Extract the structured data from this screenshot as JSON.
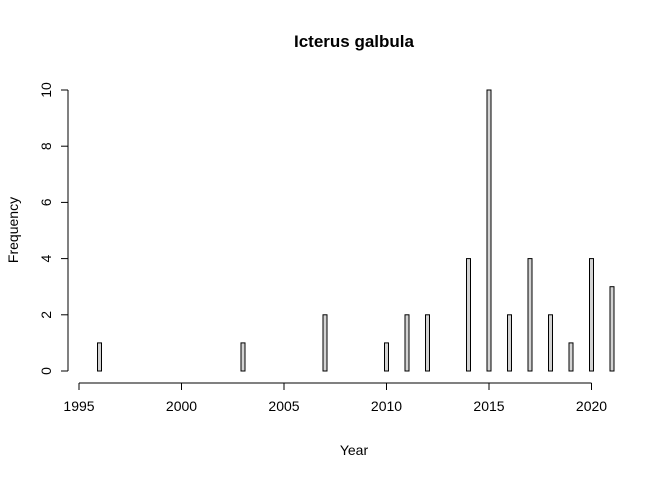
{
  "chart_data": {
    "type": "bar",
    "title": "Icterus galbula",
    "xlabel": "Year",
    "ylabel": "Frequency",
    "xlim": [
      1995,
      2021
    ],
    "ylim": [
      0,
      10
    ],
    "x_ticks": [
      1995,
      2000,
      2005,
      2010,
      2015,
      2020
    ],
    "y_ticks": [
      0,
      2,
      4,
      6,
      8,
      10
    ],
    "years": [
      1996,
      1997,
      1998,
      1999,
      2000,
      2001,
      2002,
      2003,
      2004,
      2005,
      2006,
      2007,
      2008,
      2009,
      2010,
      2011,
      2012,
      2013,
      2014,
      2015,
      2016,
      2017,
      2018,
      2019,
      2020,
      2021
    ],
    "values": [
      1,
      0,
      0,
      0,
      0,
      0,
      0,
      1,
      0,
      0,
      0,
      2,
      0,
      0,
      1,
      2,
      2,
      0,
      4,
      10,
      2,
      4,
      2,
      1,
      4,
      3
    ],
    "bar_fill": "#d3d3d3",
    "bar_stroke": "#000000",
    "grid": false,
    "legend": "none"
  }
}
